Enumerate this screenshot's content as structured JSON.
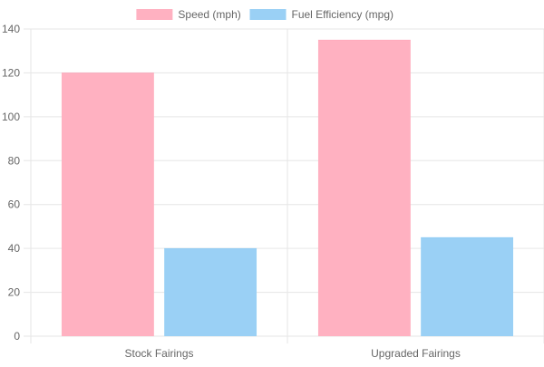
{
  "chart_data": {
    "type": "bar",
    "categories": [
      "Stock Fairings",
      "Upgraded Fairings"
    ],
    "series": [
      {
        "name": "Speed (mph)",
        "values": [
          120,
          135
        ],
        "fill": "#ffb1c1",
        "stroke": "#ff6384"
      },
      {
        "name": "Fuel Efficiency (mpg)",
        "values": [
          40,
          45
        ],
        "fill": "#9ad0f5",
        "stroke": "#36a2eb"
      }
    ],
    "ylim": [
      0,
      140
    ],
    "yticks": [
      0,
      20,
      40,
      60,
      80,
      100,
      120,
      140
    ],
    "grid": true,
    "legend": "top-center",
    "title": "",
    "xlabel": "",
    "ylabel": ""
  },
  "colors": {
    "grid": "#e6e6e6",
    "tick_text": "#666666"
  }
}
